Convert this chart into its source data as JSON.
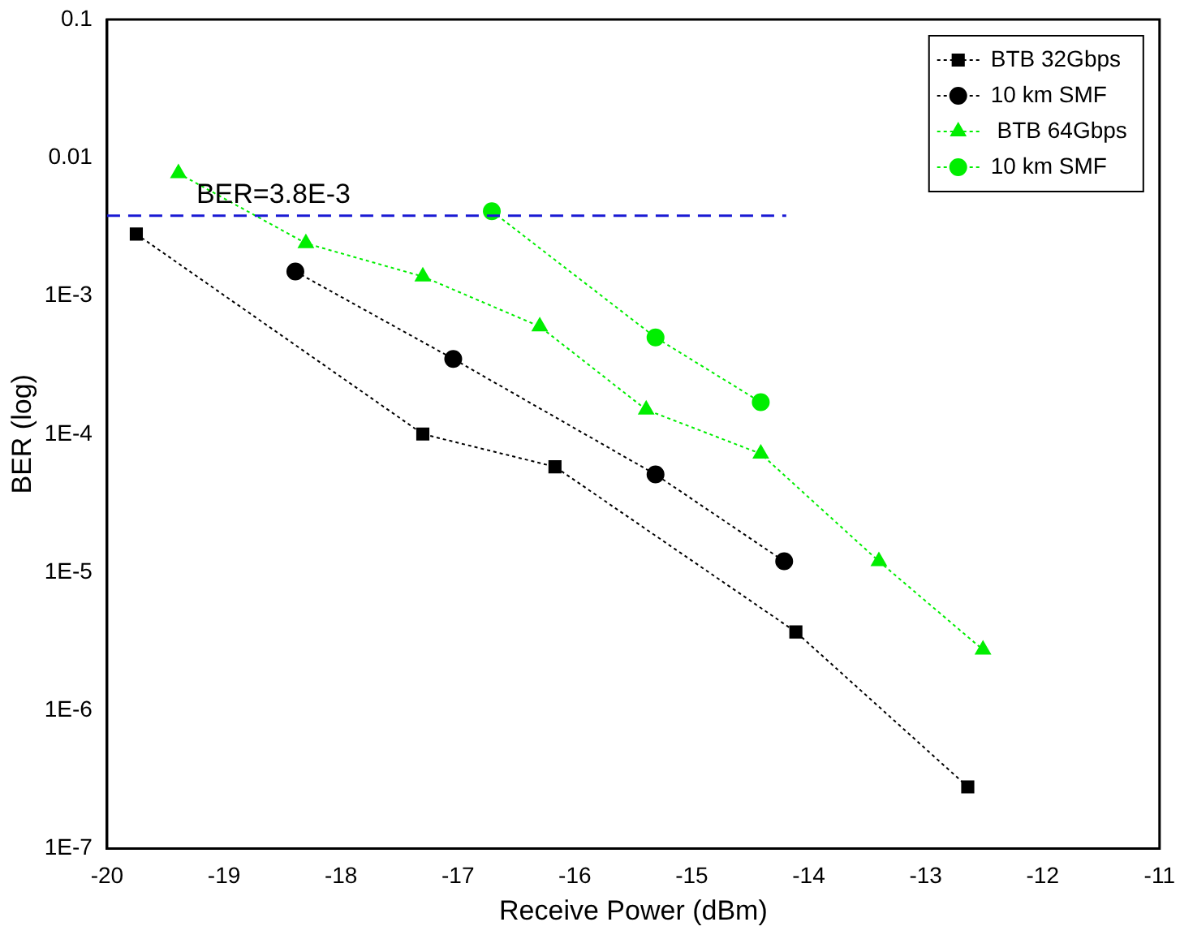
{
  "chart_data": {
    "type": "line",
    "xlabel": "Receive Power (dBm)",
    "ylabel": "BER (log)",
    "log": "y",
    "grid": false,
    "legend": "top right",
    "line_style": "dotted",
    "xlim": [
      -20,
      -11
    ],
    "xticks": [
      -20,
      -19,
      -18,
      -17,
      -16,
      -15,
      -14,
      -13,
      -12,
      -11
    ],
    "ylim": [
      1e-07,
      0.1
    ],
    "yticks": [
      {
        "value": 0.1,
        "label": "0.1"
      },
      {
        "value": 0.01,
        "label": "0.01"
      },
      {
        "value": 0.001,
        "label": "1E-3"
      },
      {
        "value": 0.0001,
        "label": "1E-4"
      },
      {
        "value": 1e-05,
        "label": "1E-5"
      },
      {
        "value": 1e-06,
        "label": "1E-6"
      },
      {
        "value": 1e-07,
        "label": "1E-7"
      }
    ],
    "ref_lines": [
      {
        "axis": "y",
        "value": 0.0038,
        "label": "BER=3.8E-3",
        "color": "#1a1ad4",
        "line_style": "dashed"
      }
    ],
    "series": [
      {
        "name": "BTB 32Gbps",
        "color": "#000000",
        "marker": "square",
        "x": [
          -19.75,
          -17.3,
          -16.17,
          -14.11,
          -12.64
        ],
        "values": [
          0.0028,
          0.0001,
          5.8e-05,
          3.7e-06,
          2.8e-07
        ]
      },
      {
        "name": "10 km SMF",
        "color": "#000000",
        "marker": "circle",
        "x": [
          -18.39,
          -17.04,
          -15.31,
          -14.21
        ],
        "values": [
          0.0015,
          0.00035,
          5.1e-05,
          1.2e-05
        ]
      },
      {
        "name": " BTB 64Gbps",
        "color": "#00ee00",
        "marker": "triangle",
        "x": [
          -19.39,
          -18.3,
          -17.3,
          -16.3,
          -15.39,
          -14.41,
          -13.4,
          -12.51
        ],
        "values": [
          0.0077,
          0.0024,
          0.00138,
          0.0006,
          0.00015,
          7.2e-05,
          1.2e-05,
          2.75e-06
        ]
      },
      {
        "name": "10 km SMF",
        "color": "#00ee00",
        "marker": "circle",
        "x": [
          -16.71,
          -15.31,
          -14.41
        ],
        "values": [
          0.0041,
          0.0005,
          0.00017
        ]
      }
    ]
  }
}
